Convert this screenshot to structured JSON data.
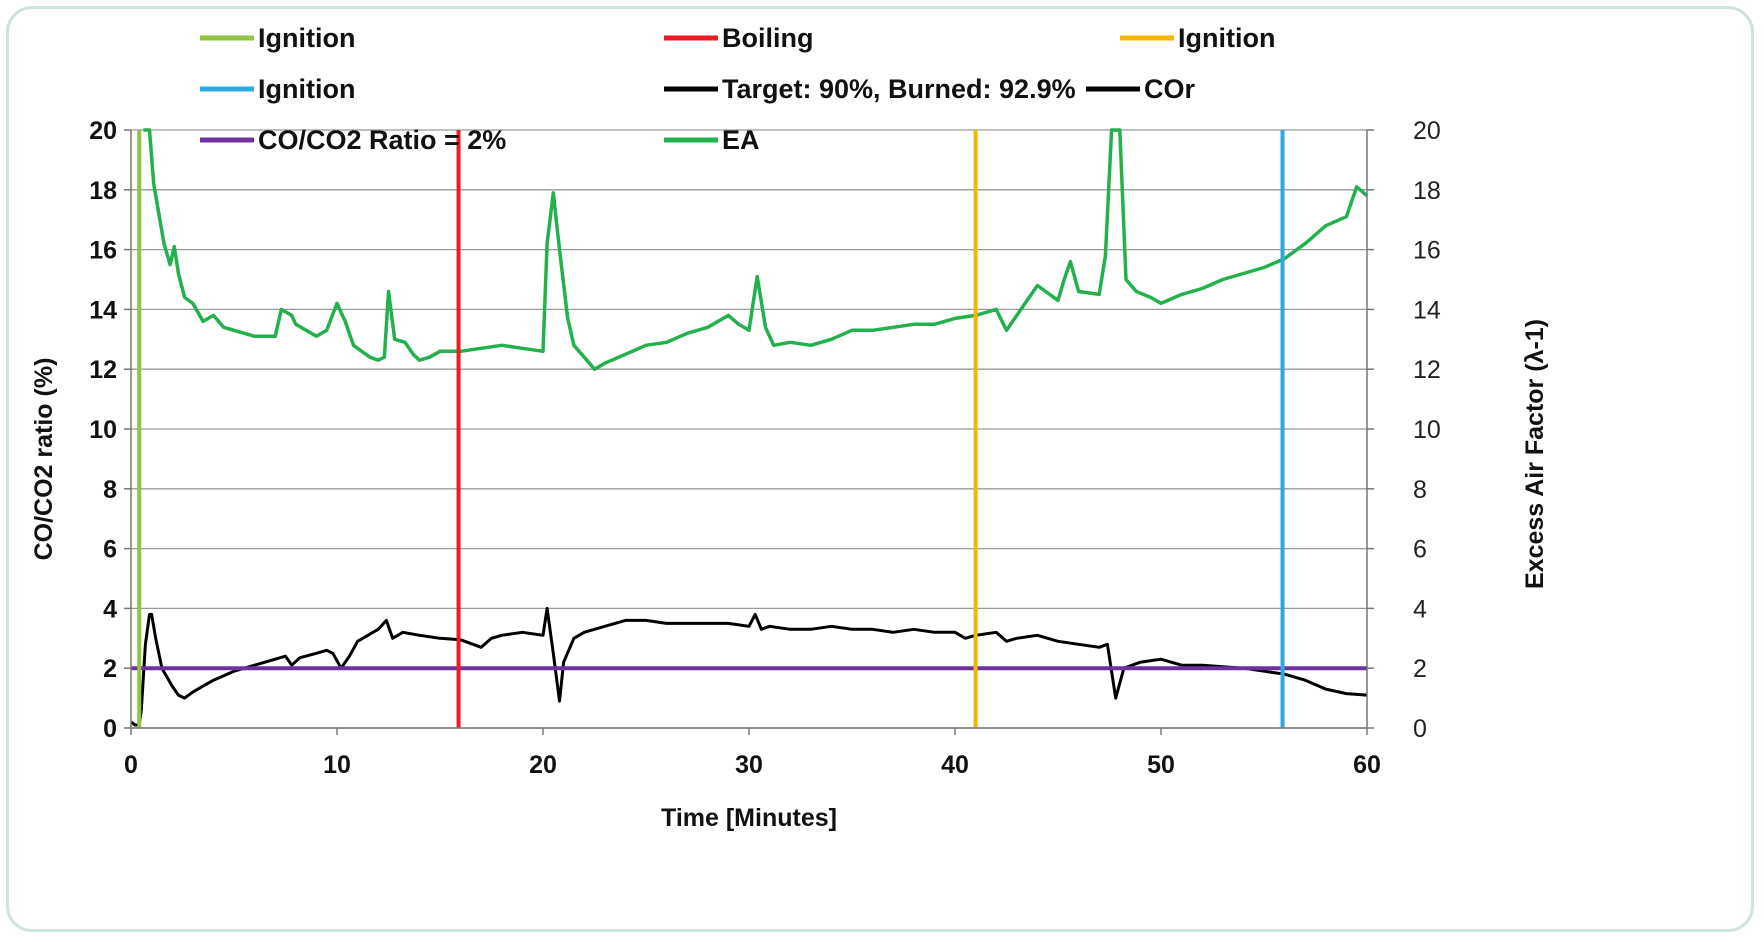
{
  "chart_data": {
    "type": "line",
    "xlabel": "Time [Minutes]",
    "ylabel": "CO/CO2 ratio (%)",
    "y2label": "Excess Air Factor (λ-1)",
    "xlim": [
      0,
      60
    ],
    "ylim": [
      0,
      20
    ],
    "y2lim": [
      0,
      20
    ],
    "x_ticks": [
      "0",
      "10",
      "20",
      "30",
      "40",
      "50",
      "60"
    ],
    "y_ticks": [
      "0",
      "2",
      "4",
      "6",
      "8",
      "10",
      "12",
      "14",
      "16",
      "18",
      "20"
    ],
    "y2_ticks": [
      "0",
      "2",
      "4",
      "6",
      "8",
      "10",
      "12",
      "14",
      "16",
      "18",
      "20"
    ],
    "grid": "horizontal",
    "legend_position": "top",
    "legend": [
      {
        "label": "Ignition",
        "color": "#8dc63f"
      },
      {
        "label": "Boiling",
        "color": "#ed1c24"
      },
      {
        "label": "Ignition",
        "color": "#f7b500"
      },
      {
        "label": "Ignition",
        "color": "#29abe2"
      },
      {
        "label": "Target: 90%, Burned: 92.9%",
        "color": "#000000"
      },
      {
        "label": "COr",
        "color": "#000000"
      },
      {
        "label": "CO/CO2 Ratio = 2%",
        "color": "#7030a0"
      },
      {
        "label": "EA",
        "color": "#22b14c"
      }
    ],
    "vlines": [
      {
        "name": "Ignition",
        "x": 0.4,
        "color": "#8dc63f"
      },
      {
        "name": "Boiling",
        "x": 15.9,
        "color": "#ed1c24"
      },
      {
        "name": "Ignition",
        "x": 41,
        "color": "#f7b500"
      },
      {
        "name": "Ignition",
        "x": 55.9,
        "color": "#29abe2"
      }
    ],
    "hlines": [
      {
        "name": "CO/CO2 Ratio = 2%",
        "y": 2,
        "color": "#7030a0"
      }
    ],
    "series": [
      {
        "name": "COr",
        "axis": "left",
        "color": "#000000",
        "points": [
          [
            0,
            0.2
          ],
          [
            0.2,
            0.1
          ],
          [
            0.4,
            0.1
          ],
          [
            0.5,
            0.6
          ],
          [
            0.7,
            2.8
          ],
          [
            0.9,
            3.8
          ],
          [
            1.0,
            3.8
          ],
          [
            1.2,
            3.0
          ],
          [
            1.5,
            2.0
          ],
          [
            2.0,
            1.4
          ],
          [
            2.3,
            1.1
          ],
          [
            2.6,
            1.0
          ],
          [
            3,
            1.2
          ],
          [
            3.5,
            1.4
          ],
          [
            4,
            1.6
          ],
          [
            4.5,
            1.75
          ],
          [
            5,
            1.9
          ],
          [
            6,
            2.1
          ],
          [
            7,
            2.3
          ],
          [
            7.5,
            2.4
          ],
          [
            7.8,
            2.1
          ],
          [
            8.2,
            2.35
          ],
          [
            9,
            2.5
          ],
          [
            9.5,
            2.6
          ],
          [
            9.8,
            2.5
          ],
          [
            10.2,
            2.0
          ],
          [
            10.6,
            2.4
          ],
          [
            11,
            2.9
          ],
          [
            11.5,
            3.1
          ],
          [
            12,
            3.3
          ],
          [
            12.4,
            3.6
          ],
          [
            12.7,
            3.0
          ],
          [
            13.2,
            3.2
          ],
          [
            14,
            3.1
          ],
          [
            15,
            3.0
          ],
          [
            16,
            2.95
          ],
          [
            17,
            2.7
          ],
          [
            17.5,
            3.0
          ],
          [
            18,
            3.1
          ],
          [
            19,
            3.2
          ],
          [
            20,
            3.1
          ],
          [
            20.2,
            4.0
          ],
          [
            20.5,
            2.5
          ],
          [
            20.8,
            0.9
          ],
          [
            21,
            2.2
          ],
          [
            21.5,
            3.0
          ],
          [
            22,
            3.2
          ],
          [
            23,
            3.4
          ],
          [
            24,
            3.6
          ],
          [
            25,
            3.6
          ],
          [
            26,
            3.5
          ],
          [
            27,
            3.5
          ],
          [
            28,
            3.5
          ],
          [
            29,
            3.5
          ],
          [
            30,
            3.4
          ],
          [
            30.3,
            3.8
          ],
          [
            30.6,
            3.3
          ],
          [
            31,
            3.4
          ],
          [
            32,
            3.3
          ],
          [
            33,
            3.3
          ],
          [
            34,
            3.4
          ],
          [
            35,
            3.3
          ],
          [
            36,
            3.3
          ],
          [
            37,
            3.2
          ],
          [
            38,
            3.3
          ],
          [
            39,
            3.2
          ],
          [
            40,
            3.2
          ],
          [
            40.5,
            3.0
          ],
          [
            41,
            3.1
          ],
          [
            42,
            3.2
          ],
          [
            42.5,
            2.9
          ],
          [
            43,
            3.0
          ],
          [
            44,
            3.1
          ],
          [
            45,
            2.9
          ],
          [
            46,
            2.8
          ],
          [
            47,
            2.7
          ],
          [
            47.4,
            2.8
          ],
          [
            47.8,
            1.0
          ],
          [
            48.2,
            2.0
          ],
          [
            49,
            2.2
          ],
          [
            50,
            2.3
          ],
          [
            51,
            2.1
          ],
          [
            52,
            2.1
          ],
          [
            53,
            2.05
          ],
          [
            54,
            2.0
          ],
          [
            55,
            1.9
          ],
          [
            56,
            1.8
          ],
          [
            57,
            1.6
          ],
          [
            58,
            1.3
          ],
          [
            59,
            1.15
          ],
          [
            60,
            1.1
          ]
        ]
      },
      {
        "name": "EA",
        "axis": "right",
        "color": "#22b14c",
        "points": [
          [
            0.6,
            20
          ],
          [
            0.9,
            20
          ],
          [
            1.1,
            18.2
          ],
          [
            1.3,
            17.4
          ],
          [
            1.6,
            16.2
          ],
          [
            1.9,
            15.5
          ],
          [
            2.1,
            16.1
          ],
          [
            2.3,
            15.2
          ],
          [
            2.6,
            14.4
          ],
          [
            3,
            14.2
          ],
          [
            3.5,
            13.6
          ],
          [
            4,
            13.8
          ],
          [
            4.5,
            13.4
          ],
          [
            5,
            13.3
          ],
          [
            6,
            13.1
          ],
          [
            7,
            13.1
          ],
          [
            7.3,
            14.0
          ],
          [
            7.8,
            13.8
          ],
          [
            8,
            13.5
          ],
          [
            9,
            13.1
          ],
          [
            9.5,
            13.3
          ],
          [
            10,
            14.2
          ],
          [
            10.4,
            13.6
          ],
          [
            10.8,
            12.8
          ],
          [
            11.2,
            12.6
          ],
          [
            11.6,
            12.4
          ],
          [
            12,
            12.3
          ],
          [
            12.3,
            12.4
          ],
          [
            12.5,
            14.6
          ],
          [
            12.8,
            13.0
          ],
          [
            13.3,
            12.9
          ],
          [
            13.7,
            12.5
          ],
          [
            14,
            12.3
          ],
          [
            14.5,
            12.4
          ],
          [
            15,
            12.6
          ],
          [
            16,
            12.6
          ],
          [
            17,
            12.7
          ],
          [
            18,
            12.8
          ],
          [
            19,
            12.7
          ],
          [
            20,
            12.6
          ],
          [
            20.2,
            16.2
          ],
          [
            20.5,
            17.9
          ],
          [
            20.8,
            16.0
          ],
          [
            21.2,
            13.7
          ],
          [
            21.5,
            12.8
          ],
          [
            22,
            12.4
          ],
          [
            22.5,
            12.0
          ],
          [
            23,
            12.2
          ],
          [
            24,
            12.5
          ],
          [
            25,
            12.8
          ],
          [
            26,
            12.9
          ],
          [
            27,
            13.2
          ],
          [
            28,
            13.4
          ],
          [
            29,
            13.8
          ],
          [
            29.5,
            13.5
          ],
          [
            30,
            13.3
          ],
          [
            30.4,
            15.1
          ],
          [
            30.8,
            13.4
          ],
          [
            31.2,
            12.8
          ],
          [
            32,
            12.9
          ],
          [
            33,
            12.8
          ],
          [
            34,
            13.0
          ],
          [
            35,
            13.3
          ],
          [
            36,
            13.3
          ],
          [
            37,
            13.4
          ],
          [
            38,
            13.5
          ],
          [
            39,
            13.5
          ],
          [
            40,
            13.7
          ],
          [
            41,
            13.8
          ],
          [
            42,
            14.0
          ],
          [
            42.5,
            13.3
          ],
          [
            43,
            13.8
          ],
          [
            43.5,
            14.3
          ],
          [
            44,
            14.8
          ],
          [
            45,
            14.3
          ],
          [
            45.3,
            15.0
          ],
          [
            45.6,
            15.6
          ],
          [
            46,
            14.6
          ],
          [
            47,
            14.5
          ],
          [
            47.3,
            15.8
          ],
          [
            47.6,
            20
          ],
          [
            48.0,
            20
          ],
          [
            48.3,
            15.0
          ],
          [
            48.8,
            14.6
          ],
          [
            49.5,
            14.4
          ],
          [
            50,
            14.2
          ],
          [
            51,
            14.5
          ],
          [
            52,
            14.7
          ],
          [
            53,
            15.0
          ],
          [
            54,
            15.2
          ],
          [
            55,
            15.4
          ],
          [
            56,
            15.7
          ],
          [
            57,
            16.2
          ],
          [
            58,
            16.8
          ],
          [
            59,
            17.1
          ],
          [
            59.5,
            18.1
          ],
          [
            60,
            17.8
          ]
        ]
      }
    ]
  }
}
